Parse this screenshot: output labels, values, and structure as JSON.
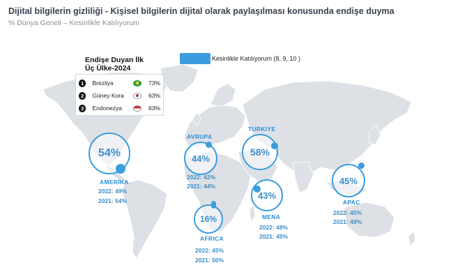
{
  "header": {
    "title": "Dijital bilgilerin gizliliği - Kişisel bilgilerin dijital olarak paylaşılması konusunda endişe duyma",
    "subtitle": "% Dünya Geneli – Kesinlikle Katılıyorum"
  },
  "legend": {
    "label": "Kesinlikle Katılıyorum (8, 9, 10 )",
    "color": "#3b9ddd"
  },
  "top3": {
    "title": "Endişe Duyan İlk Üç Ülke-2024",
    "items": [
      {
        "rank": "1",
        "country": "Brezilya",
        "flag": "brazil-flag",
        "value": "73%"
      },
      {
        "rank": "2",
        "country": "Güney Kora",
        "flag": "south-korea-flag",
        "value": "63%"
      },
      {
        "rank": "3",
        "country": "Endonezya",
        "flag": "indonesia-flag",
        "value": "63%"
      }
    ]
  },
  "regions": {
    "amerika": {
      "name": "AMERİKA",
      "value": "54%",
      "y2022": "2022: 49%",
      "y2021": "2021: 54%"
    },
    "avrupa": {
      "name": "AVRUPA",
      "value": "44%",
      "y2022": "2022: 42%",
      "y2021": "2021: 44%"
    },
    "turkiye": {
      "name": "TURKIYE",
      "value": "58%"
    },
    "mena": {
      "name": "MENA",
      "value": "43%",
      "y2022": "2022: 48%",
      "y2021": "2021: 45%"
    },
    "africa": {
      "name": "AFRICA",
      "value": "16%",
      "y2022": "2022: 45%",
      "y2021": "2021: 50%"
    },
    "apac": {
      "name": "APAC",
      "value": "45%",
      "y2022": "2022: 45%",
      "y2021": "2021: 49%"
    }
  },
  "colors": {
    "accent": "#3b9ddd",
    "land": "#dde1e6"
  }
}
